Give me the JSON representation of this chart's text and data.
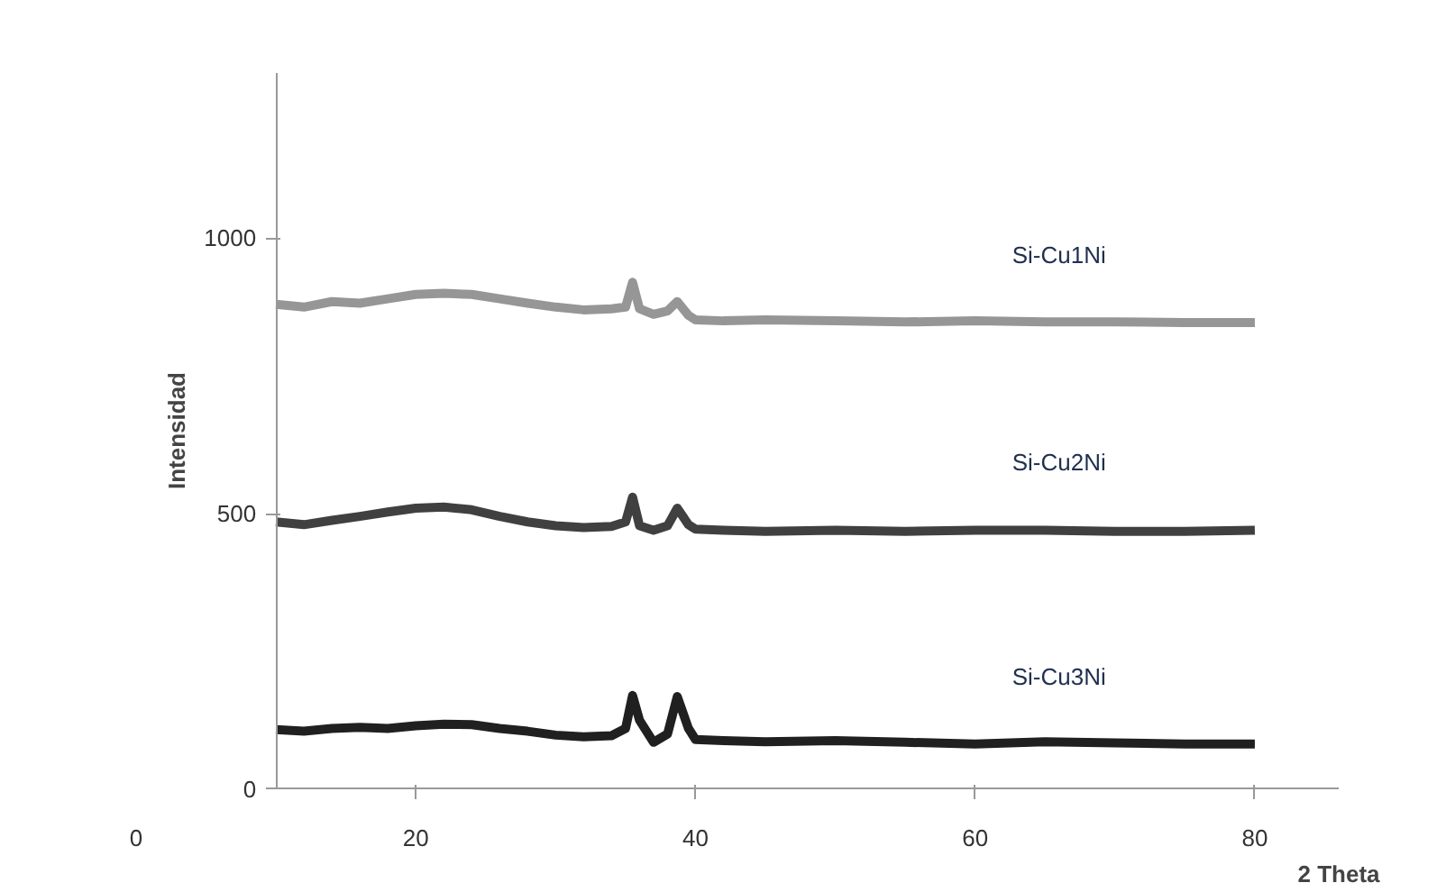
{
  "chart_data": {
    "type": "line",
    "xlabel": "2 Theta",
    "ylabel": "Intensidad",
    "x": [
      10,
      12,
      14,
      16,
      18,
      20,
      22,
      24,
      26,
      28,
      30,
      32,
      34,
      35,
      35.5,
      36,
      37,
      38,
      38.7,
      39.5,
      40,
      42,
      45,
      50,
      55,
      60,
      65,
      70,
      75,
      80
    ],
    "series": [
      {
        "name": "Si-Cu1Ni",
        "color": "#969696",
        "values": [
          880,
          875,
          885,
          882,
          890,
          898,
          900,
          898,
          890,
          882,
          875,
          870,
          872,
          875,
          920,
          872,
          862,
          868,
          885,
          860,
          852,
          850,
          852,
          850,
          848,
          850,
          848,
          848,
          847,
          847
        ]
      },
      {
        "name": "Si-Cu2Ni",
        "color": "#404040",
        "values": [
          485,
          480,
          488,
          495,
          503,
          510,
          512,
          507,
          495,
          485,
          478,
          475,
          477,
          485,
          530,
          478,
          470,
          478,
          510,
          480,
          472,
          470,
          468,
          470,
          468,
          470,
          470,
          468,
          468,
          470
        ]
      },
      {
        "name": "Si-Cu3Ni",
        "color": "#202020",
        "values": [
          108,
          105,
          110,
          112,
          110,
          115,
          118,
          117,
          110,
          105,
          98,
          95,
          97,
          110,
          170,
          125,
          85,
          100,
          168,
          110,
          90,
          88,
          86,
          88,
          85,
          82,
          86,
          84,
          82,
          82
        ]
      }
    ],
    "xlim": [
      0,
      86
    ],
    "ylim": [
      0,
      1300
    ],
    "xticks": [
      0,
      20,
      40,
      60,
      80
    ],
    "yticks": [
      0,
      500,
      1000
    ],
    "grid": false,
    "marker": "none",
    "line_style": "solid"
  }
}
